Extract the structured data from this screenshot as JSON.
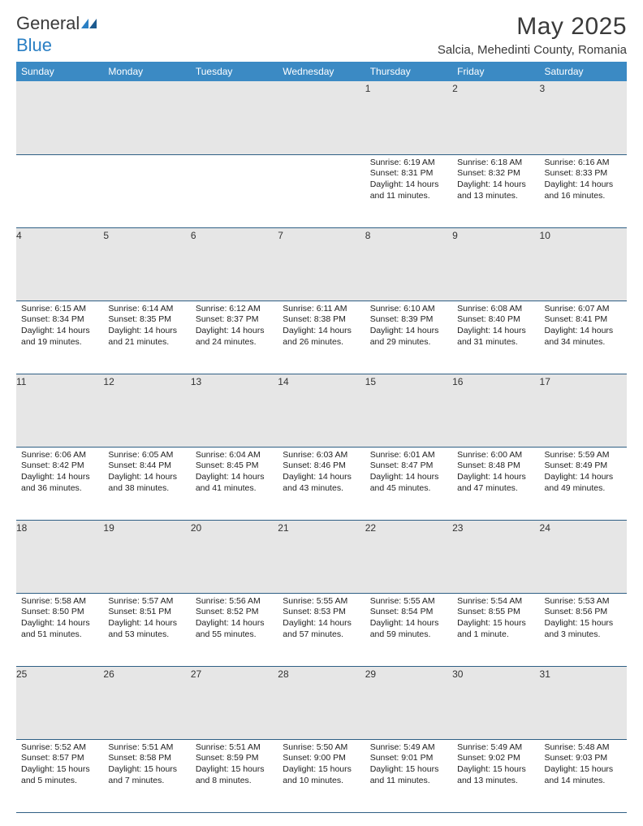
{
  "logo": {
    "general": "General",
    "blue": "Blue"
  },
  "header": {
    "month": "May 2025",
    "location": "Salcia, Mehedinti County, Romania"
  },
  "weekdays": [
    "Sunday",
    "Monday",
    "Tuesday",
    "Wednesday",
    "Thursday",
    "Friday",
    "Saturday"
  ],
  "colors": {
    "header_bg": "#3b8ac4",
    "header_text": "#ffffff",
    "daynum_bg": "#e6e6e6",
    "cell_border": "#2f5f85",
    "text": "#222222",
    "logo_blue": "#2a7fc4",
    "logo_dark": "#1c5a8f"
  },
  "typography": {
    "title_fontsize": 30,
    "location_fontsize": 15,
    "weekday_fontsize": 12,
    "daynum_fontsize": 12,
    "info_fontsize": 10.5
  },
  "calendar": {
    "type": "table",
    "first_weekday_index": 4,
    "num_days": 31,
    "days": [
      {
        "n": 1,
        "sunrise": "6:19 AM",
        "sunset": "8:31 PM",
        "daylight": "14 hours and 11 minutes."
      },
      {
        "n": 2,
        "sunrise": "6:18 AM",
        "sunset": "8:32 PM",
        "daylight": "14 hours and 13 minutes."
      },
      {
        "n": 3,
        "sunrise": "6:16 AM",
        "sunset": "8:33 PM",
        "daylight": "14 hours and 16 minutes."
      },
      {
        "n": 4,
        "sunrise": "6:15 AM",
        "sunset": "8:34 PM",
        "daylight": "14 hours and 19 minutes."
      },
      {
        "n": 5,
        "sunrise": "6:14 AM",
        "sunset": "8:35 PM",
        "daylight": "14 hours and 21 minutes."
      },
      {
        "n": 6,
        "sunrise": "6:12 AM",
        "sunset": "8:37 PM",
        "daylight": "14 hours and 24 minutes."
      },
      {
        "n": 7,
        "sunrise": "6:11 AM",
        "sunset": "8:38 PM",
        "daylight": "14 hours and 26 minutes."
      },
      {
        "n": 8,
        "sunrise": "6:10 AM",
        "sunset": "8:39 PM",
        "daylight": "14 hours and 29 minutes."
      },
      {
        "n": 9,
        "sunrise": "6:08 AM",
        "sunset": "8:40 PM",
        "daylight": "14 hours and 31 minutes."
      },
      {
        "n": 10,
        "sunrise": "6:07 AM",
        "sunset": "8:41 PM",
        "daylight": "14 hours and 34 minutes."
      },
      {
        "n": 11,
        "sunrise": "6:06 AM",
        "sunset": "8:42 PM",
        "daylight": "14 hours and 36 minutes."
      },
      {
        "n": 12,
        "sunrise": "6:05 AM",
        "sunset": "8:44 PM",
        "daylight": "14 hours and 38 minutes."
      },
      {
        "n": 13,
        "sunrise": "6:04 AM",
        "sunset": "8:45 PM",
        "daylight": "14 hours and 41 minutes."
      },
      {
        "n": 14,
        "sunrise": "6:03 AM",
        "sunset": "8:46 PM",
        "daylight": "14 hours and 43 minutes."
      },
      {
        "n": 15,
        "sunrise": "6:01 AM",
        "sunset": "8:47 PM",
        "daylight": "14 hours and 45 minutes."
      },
      {
        "n": 16,
        "sunrise": "6:00 AM",
        "sunset": "8:48 PM",
        "daylight": "14 hours and 47 minutes."
      },
      {
        "n": 17,
        "sunrise": "5:59 AM",
        "sunset": "8:49 PM",
        "daylight": "14 hours and 49 minutes."
      },
      {
        "n": 18,
        "sunrise": "5:58 AM",
        "sunset": "8:50 PM",
        "daylight": "14 hours and 51 minutes."
      },
      {
        "n": 19,
        "sunrise": "5:57 AM",
        "sunset": "8:51 PM",
        "daylight": "14 hours and 53 minutes."
      },
      {
        "n": 20,
        "sunrise": "5:56 AM",
        "sunset": "8:52 PM",
        "daylight": "14 hours and 55 minutes."
      },
      {
        "n": 21,
        "sunrise": "5:55 AM",
        "sunset": "8:53 PM",
        "daylight": "14 hours and 57 minutes."
      },
      {
        "n": 22,
        "sunrise": "5:55 AM",
        "sunset": "8:54 PM",
        "daylight": "14 hours and 59 minutes."
      },
      {
        "n": 23,
        "sunrise": "5:54 AM",
        "sunset": "8:55 PM",
        "daylight": "15 hours and 1 minute."
      },
      {
        "n": 24,
        "sunrise": "5:53 AM",
        "sunset": "8:56 PM",
        "daylight": "15 hours and 3 minutes."
      },
      {
        "n": 25,
        "sunrise": "5:52 AM",
        "sunset": "8:57 PM",
        "daylight": "15 hours and 5 minutes."
      },
      {
        "n": 26,
        "sunrise": "5:51 AM",
        "sunset": "8:58 PM",
        "daylight": "15 hours and 7 minutes."
      },
      {
        "n": 27,
        "sunrise": "5:51 AM",
        "sunset": "8:59 PM",
        "daylight": "15 hours and 8 minutes."
      },
      {
        "n": 28,
        "sunrise": "5:50 AM",
        "sunset": "9:00 PM",
        "daylight": "15 hours and 10 minutes."
      },
      {
        "n": 29,
        "sunrise": "5:49 AM",
        "sunset": "9:01 PM",
        "daylight": "15 hours and 11 minutes."
      },
      {
        "n": 30,
        "sunrise": "5:49 AM",
        "sunset": "9:02 PM",
        "daylight": "15 hours and 13 minutes."
      },
      {
        "n": 31,
        "sunrise": "5:48 AM",
        "sunset": "9:03 PM",
        "daylight": "15 hours and 14 minutes."
      }
    ],
    "labels": {
      "sunrise": "Sunrise:",
      "sunset": "Sunset:",
      "daylight": "Daylight:"
    }
  }
}
